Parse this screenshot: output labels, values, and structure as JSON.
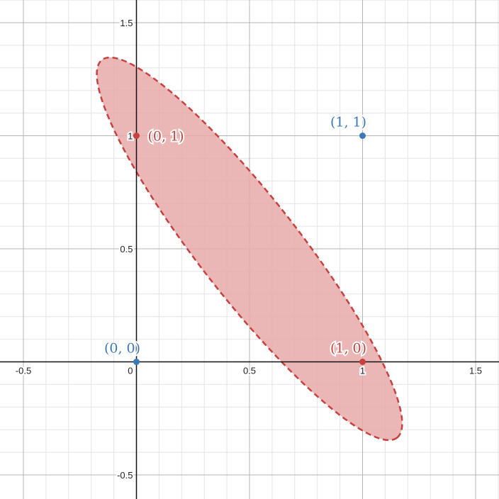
{
  "chart_data": {
    "type": "scatter",
    "xlim": [
      -0.6,
      1.6
    ],
    "ylim": [
      -0.6,
      1.6
    ],
    "grid": true,
    "minor_step": 0.1,
    "major_step": 0.5,
    "x_ticks": [
      {
        "value": -0.5,
        "label": "-0.5"
      },
      {
        "value": 0.5,
        "label": "0.5"
      },
      {
        "value": 1,
        "label": "1"
      },
      {
        "value": 1.5,
        "label": "1.5"
      }
    ],
    "y_ticks": [
      {
        "value": -0.5,
        "label": "-0.5"
      },
      {
        "value": 0.5,
        "label": "0.5"
      },
      {
        "value": 1,
        "label": "1"
      },
      {
        "value": 1.5,
        "label": "1.5"
      }
    ],
    "origin_label": "0",
    "points": [
      {
        "x": 0,
        "y": 0,
        "label": "(0, 0)",
        "color": "#3a78b8"
      },
      {
        "x": 1,
        "y": 1,
        "label": "(1, 1)",
        "color": "#3a78b8"
      },
      {
        "x": 0,
        "y": 1,
        "label": "(0, 1)",
        "color": "#c8413f"
      },
      {
        "x": 1,
        "y": 0,
        "label": "(1, 0)",
        "color": "#c8413f"
      }
    ],
    "region": {
      "shape": "ellipse",
      "center": [
        0.5,
        0.5
      ],
      "semi_major": 1.06,
      "semi_minor": 0.22,
      "angle_deg": -52,
      "fill": "#e7a9a9",
      "stroke": "#c8413f",
      "dashed": true
    }
  }
}
